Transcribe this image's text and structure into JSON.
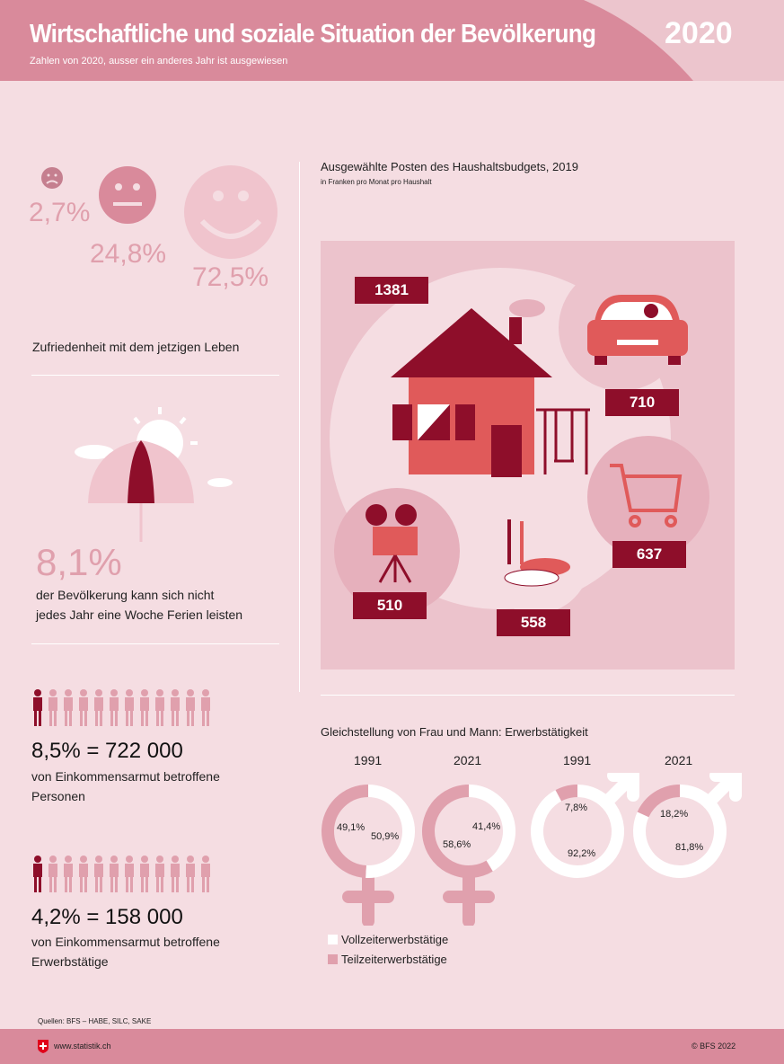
{
  "header": {
    "title": "Wirtschaftliche und soziale Situation der Bevölkerung",
    "subtitle": "Zahlen von 2020, ausser ein anderes Jahr ist ausgewiesen",
    "year": "2020"
  },
  "satisfaction": {
    "unhappy": "2,7%",
    "neutral": "24,8%",
    "happy": "72,5%",
    "label": "Zufriedenheit mit dem jetzigen Leben"
  },
  "holidays": {
    "value": "8,1%",
    "label_line1": "der Bevölkerung kann sich nicht",
    "label_line2": "jedes Jahr eine Woche Ferien leisten"
  },
  "poverty": {
    "value": "8,5% = 722 000",
    "label_line1": "von Einkommensarmut betroffene",
    "label_line2": "Personen"
  },
  "working_poor": {
    "value": "4,2% = 158 000",
    "label_line1": "von Einkommensarmut betroffene",
    "label_line2": "Erwerbstätige"
  },
  "source": "Quellen: BFS – HABE, SILC, SAKE",
  "footer": {
    "website": "www.statistik.ch",
    "copyright": "© BFS 2022"
  },
  "colors": {
    "header": "#d98a9b",
    "background": "#f5dde2",
    "dark_red": "#8e0e2a",
    "red": "#e05a5a",
    "pink": "#e0a0ad"
  },
  "chart_data": [
    {
      "type": "table",
      "title": "Ausgewählte Posten des Haushaltsbudgets, 2019",
      "subtitle": "in Franken pro Monat pro Haushalt",
      "categories": [
        "house-icon",
        "car-icon",
        "shopping-cart-icon",
        "food-icon",
        "film-camera-icon"
      ],
      "values": [
        1381,
        710,
        637,
        558,
        510
      ]
    },
    {
      "type": "pie",
      "title": "Gleichstellung von Frau und Mann: Erwerbstätigkeit",
      "legend": [
        "Vollzeiterwerbstätige",
        "Teilzeiterwerbstätige"
      ],
      "charts": [
        {
          "year": "1991",
          "sex": "female",
          "full_time": 50.9,
          "part_time": 49.1,
          "full_label": "50,9%",
          "part_label": "49,1%"
        },
        {
          "year": "2021",
          "sex": "female",
          "full_time": 41.4,
          "part_time": 58.6,
          "full_label": "41,4%",
          "part_label": "58,6%"
        },
        {
          "year": "1991",
          "sex": "male",
          "full_time": 92.2,
          "part_time": 7.8,
          "full_label": "92,2%",
          "part_label": "7,8%"
        },
        {
          "year": "2021",
          "sex": "male",
          "full_time": 81.8,
          "part_time": 18.2,
          "full_label": "81,8%",
          "part_label": "18,2%"
        }
      ]
    }
  ]
}
